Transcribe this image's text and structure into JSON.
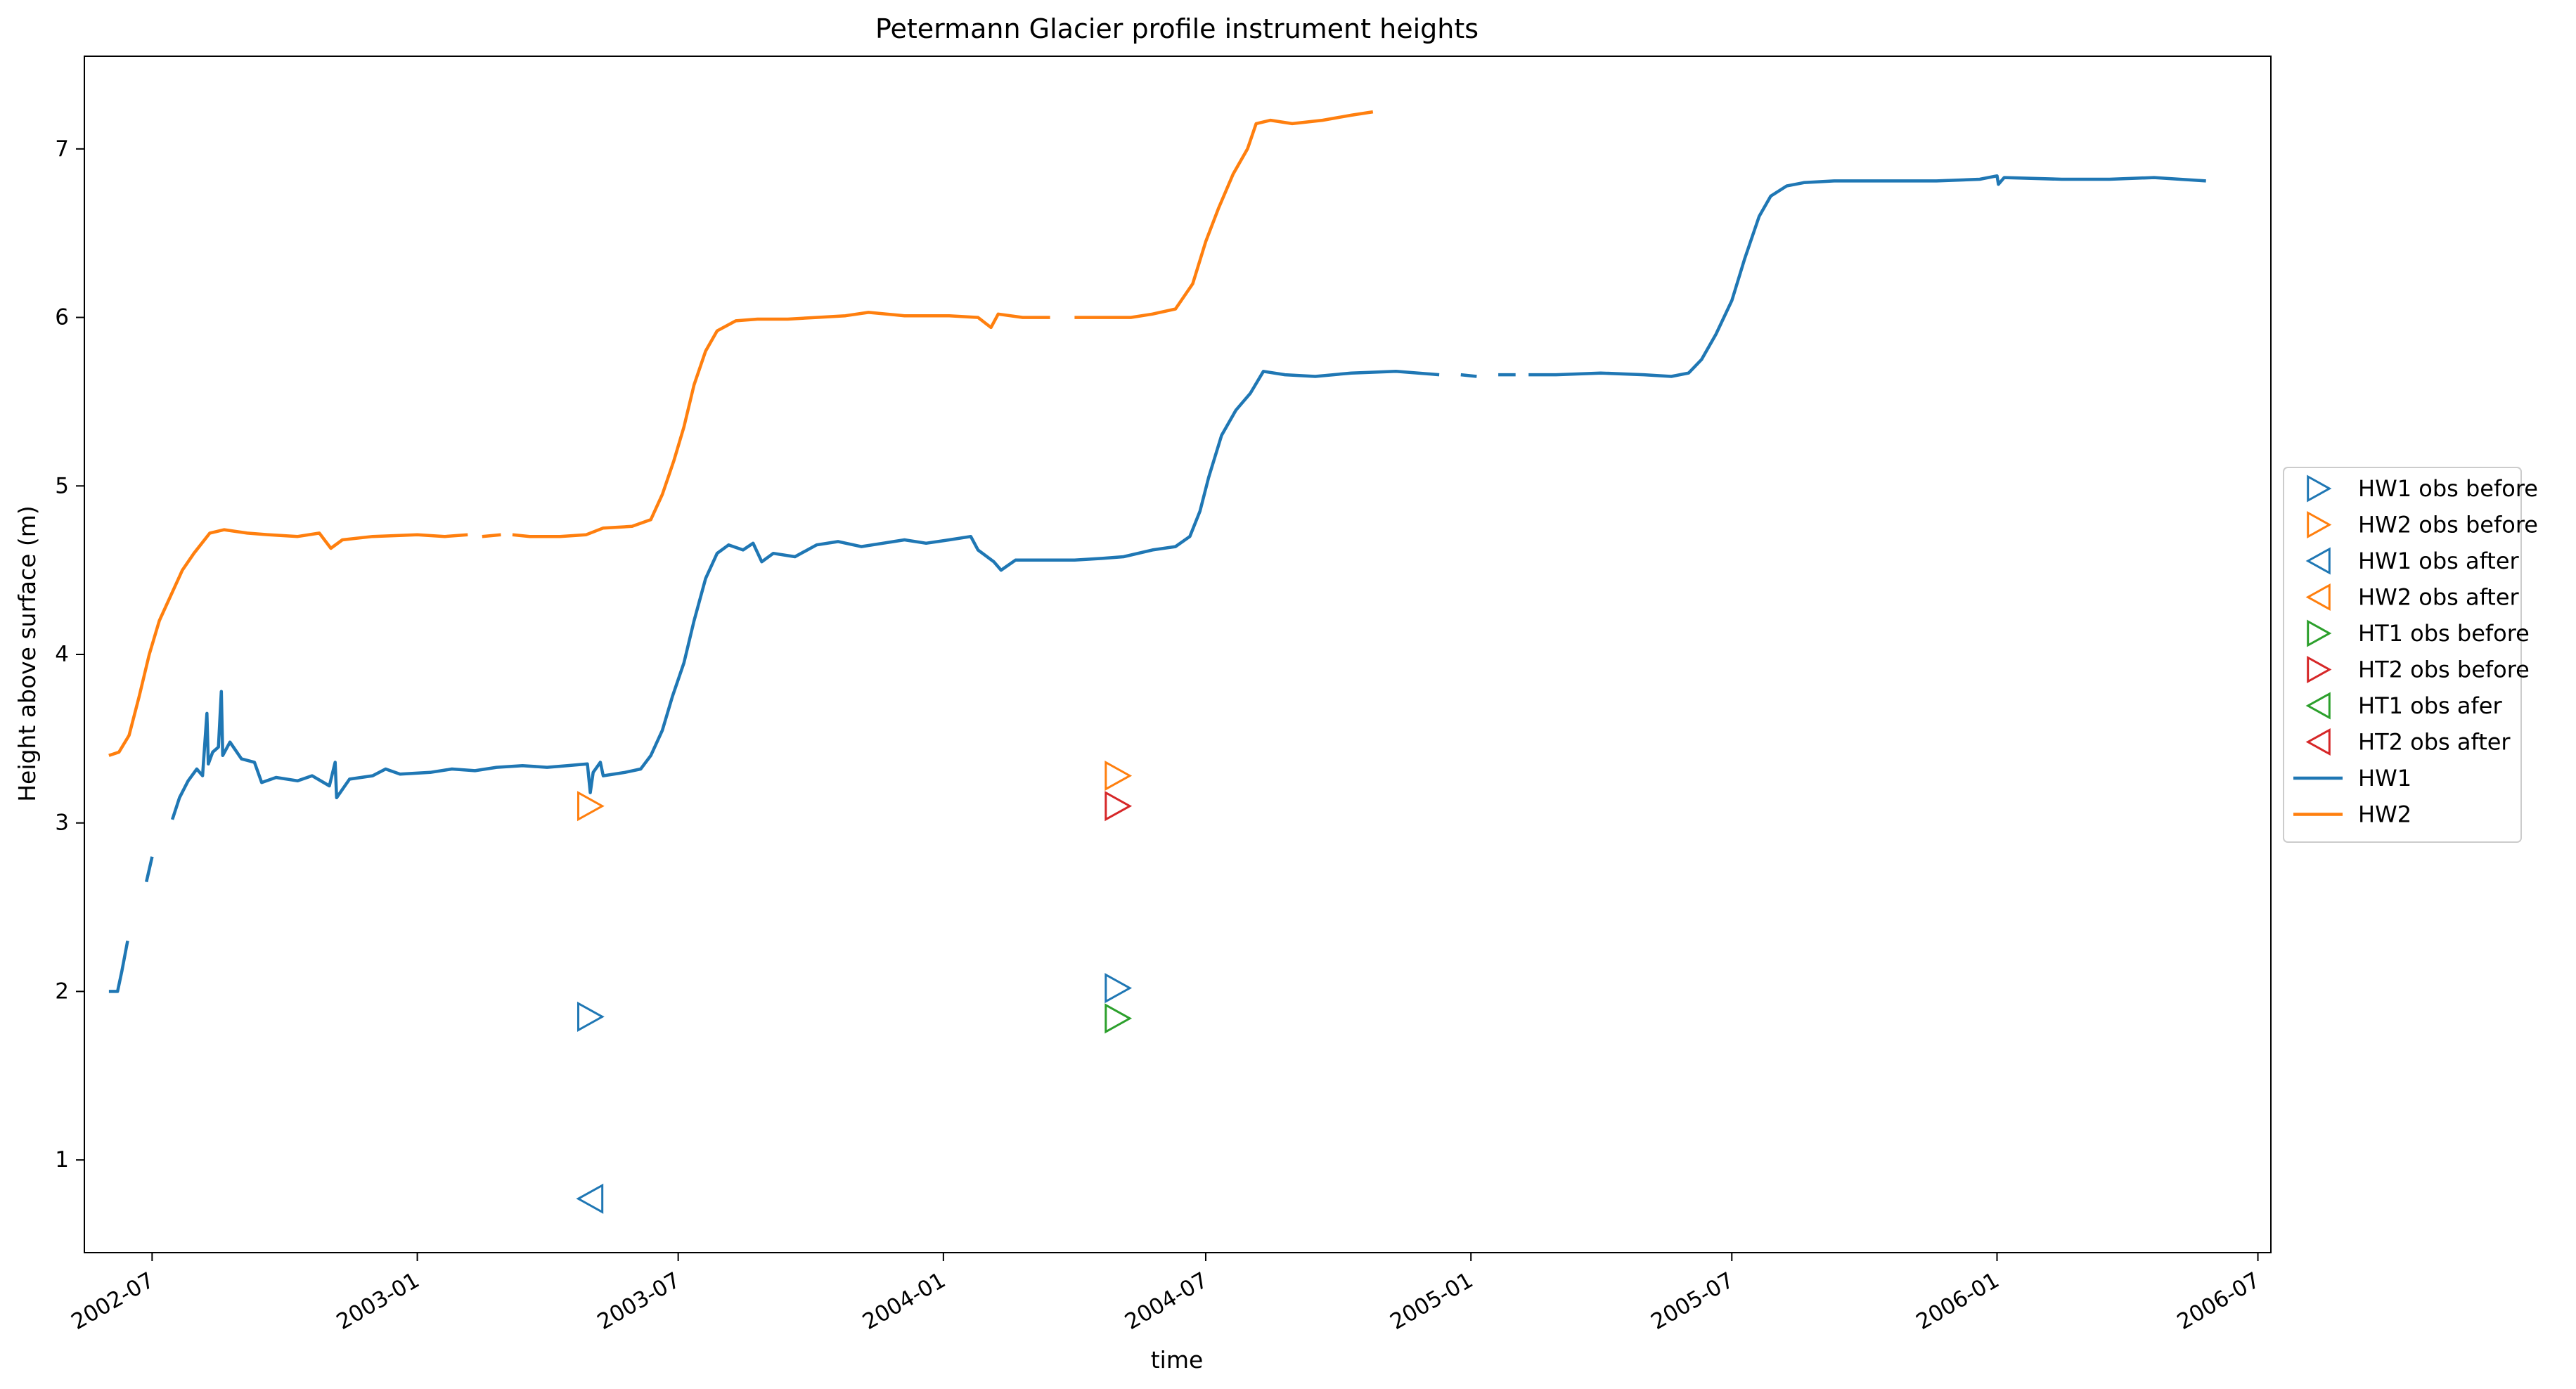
{
  "chart_data": {
    "type": "line",
    "title": "Petermann Glacier profile instrument heights",
    "xlabel": "time",
    "ylabel": "Height above surface (m)",
    "x_type": "date",
    "xlim": [
      "2002-05-15",
      "2006-07-10"
    ],
    "ylim": [
      0.45,
      7.55
    ],
    "x_ticks": [
      "2002-07",
      "2003-01",
      "2003-07",
      "2004-01",
      "2004-07",
      "2005-01",
      "2005-07",
      "2006-01",
      "2006-07"
    ],
    "y_ticks": [
      1,
      2,
      3,
      4,
      5,
      6,
      7
    ],
    "grid": false,
    "legend_position": "outside-right",
    "series": [
      {
        "name": "HW1",
        "color": "#1f77b4",
        "segments": [
          [
            [
              "2002-06-01",
              2.0
            ],
            [
              "2002-06-07",
              2.0
            ],
            [
              "2002-06-10",
              2.12
            ],
            [
              "2002-06-14",
              2.3
            ]
          ],
          [
            [
              "2002-06-27",
              2.65
            ],
            [
              "2002-07-01",
              2.8
            ]
          ],
          [
            [
              "2002-07-15",
              3.02
            ],
            [
              "2002-07-20",
              3.15
            ],
            [
              "2002-07-26",
              3.25
            ],
            [
              "2002-08-01",
              3.32
            ],
            [
              "2002-08-05",
              3.28
            ],
            [
              "2002-08-08",
              3.65
            ],
            [
              "2002-08-09",
              3.35
            ],
            [
              "2002-08-12",
              3.42
            ],
            [
              "2002-08-16",
              3.45
            ],
            [
              "2002-08-18",
              3.78
            ],
            [
              "2002-08-19",
              3.4
            ],
            [
              "2002-08-24",
              3.48
            ],
            [
              "2002-09-01",
              3.38
            ],
            [
              "2002-09-10",
              3.36
            ],
            [
              "2002-09-15",
              3.24
            ],
            [
              "2002-09-25",
              3.27
            ],
            [
              "2002-10-10",
              3.25
            ],
            [
              "2002-10-20",
              3.28
            ],
            [
              "2002-11-01",
              3.22
            ],
            [
              "2002-11-05",
              3.36
            ],
            [
              "2002-11-06",
              3.15
            ],
            [
              "2002-11-15",
              3.26
            ],
            [
              "2002-12-01",
              3.28
            ],
            [
              "2002-12-10",
              3.32
            ],
            [
              "2002-12-20",
              3.29
            ],
            [
              "2003-01-10",
              3.3
            ],
            [
              "2003-01-25",
              3.32
            ],
            [
              "2003-02-10",
              3.31
            ],
            [
              "2003-02-25",
              3.33
            ],
            [
              "2003-03-15",
              3.34
            ],
            [
              "2003-04-01",
              3.33
            ],
            [
              "2003-04-15",
              3.34
            ],
            [
              "2003-04-29",
              3.35
            ],
            [
              "2003-05-01",
              3.18
            ],
            [
              "2003-05-03",
              3.3
            ],
            [
              "2003-05-08",
              3.36
            ],
            [
              "2003-05-10",
              3.28
            ],
            [
              "2003-05-25",
              3.3
            ],
            [
              "2003-06-05",
              3.32
            ],
            [
              "2003-06-12",
              3.4
            ],
            [
              "2003-06-20",
              3.55
            ],
            [
              "2003-06-27",
              3.75
            ],
            [
              "2003-07-05",
              3.95
            ],
            [
              "2003-07-12",
              4.2
            ],
            [
              "2003-07-20",
              4.45
            ],
            [
              "2003-07-28",
              4.6
            ],
            [
              "2003-08-05",
              4.65
            ],
            [
              "2003-08-15",
              4.62
            ],
            [
              "2003-08-22",
              4.66
            ],
            [
              "2003-08-28",
              4.55
            ],
            [
              "2003-09-05",
              4.6
            ],
            [
              "2003-09-20",
              4.58
            ],
            [
              "2003-10-05",
              4.65
            ],
            [
              "2003-10-20",
              4.67
            ],
            [
              "2003-11-05",
              4.64
            ],
            [
              "2003-11-20",
              4.66
            ],
            [
              "2003-12-05",
              4.68
            ],
            [
              "2003-12-20",
              4.66
            ],
            [
              "2004-01-05",
              4.68
            ],
            [
              "2004-01-20",
              4.7
            ],
            [
              "2004-01-25",
              4.62
            ],
            [
              "2004-02-05",
              4.55
            ],
            [
              "2004-02-10",
              4.5
            ],
            [
              "2004-02-20",
              4.56
            ],
            [
              "2004-03-10",
              4.56
            ],
            [
              "2004-04-01",
              4.56
            ],
            [
              "2004-04-20",
              4.57
            ],
            [
              "2004-05-05",
              4.58
            ],
            [
              "2004-05-25",
              4.62
            ],
            [
              "2004-06-10",
              4.64
            ],
            [
              "2004-06-20",
              4.7
            ],
            [
              "2004-06-27",
              4.85
            ],
            [
              "2004-07-03",
              5.05
            ],
            [
              "2004-07-12",
              5.3
            ],
            [
              "2004-07-22",
              5.45
            ],
            [
              "2004-08-01",
              5.55
            ],
            [
              "2004-08-10",
              5.68
            ],
            [
              "2004-08-25",
              5.66
            ],
            [
              "2004-09-15",
              5.65
            ],
            [
              "2004-10-10",
              5.67
            ],
            [
              "2004-11-10",
              5.68
            ],
            [
              "2004-12-10",
              5.66
            ]
          ],
          [
            [
              "2004-12-25",
              5.66
            ],
            [
              "2005-01-05",
              5.65
            ]
          ],
          [
            [
              "2005-01-20",
              5.66
            ],
            [
              "2005-02-01",
              5.66
            ]
          ],
          [
            [
              "2005-02-10",
              5.66
            ],
            [
              "2005-03-01",
              5.66
            ],
            [
              "2005-04-01",
              5.67
            ],
            [
              "2005-05-01",
              5.66
            ],
            [
              "2005-05-20",
              5.65
            ],
            [
              "2005-06-01",
              5.67
            ],
            [
              "2005-06-10",
              5.75
            ],
            [
              "2005-06-20",
              5.9
            ],
            [
              "2005-07-01",
              6.1
            ],
            [
              "2005-07-10",
              6.35
            ],
            [
              "2005-07-20",
              6.6
            ],
            [
              "2005-07-28",
              6.72
            ],
            [
              "2005-08-08",
              6.78
            ],
            [
              "2005-08-20",
              6.8
            ],
            [
              "2005-09-10",
              6.81
            ],
            [
              "2005-10-15",
              6.81
            ],
            [
              "2005-11-20",
              6.81
            ],
            [
              "2005-12-20",
              6.82
            ],
            [
              "2006-01-01",
              6.84
            ],
            [
              "2006-01-02",
              6.79
            ],
            [
              "2006-01-06",
              6.83
            ],
            [
              "2006-02-15",
              6.82
            ],
            [
              "2006-03-20",
              6.82
            ],
            [
              "2006-04-20",
              6.83
            ],
            [
              "2006-05-26",
              6.81
            ]
          ]
        ]
      },
      {
        "name": "HW2",
        "color": "#ff7f0e",
        "segments": [
          [
            [
              "2002-06-01",
              3.4
            ],
            [
              "2002-06-08",
              3.42
            ],
            [
              "2002-06-15",
              3.52
            ],
            [
              "2002-06-22",
              3.75
            ],
            [
              "2002-06-29",
              4.0
            ],
            [
              "2002-07-06",
              4.2
            ],
            [
              "2002-07-14",
              4.35
            ],
            [
              "2002-07-22",
              4.5
            ],
            [
              "2002-07-30",
              4.6
            ],
            [
              "2002-08-10",
              4.72
            ],
            [
              "2002-08-20",
              4.74
            ],
            [
              "2002-09-05",
              4.72
            ],
            [
              "2002-09-20",
              4.71
            ],
            [
              "2002-10-10",
              4.7
            ],
            [
              "2002-10-25",
              4.72
            ],
            [
              "2002-11-02",
              4.63
            ],
            [
              "2002-11-10",
              4.68
            ],
            [
              "2002-12-01",
              4.7
            ],
            [
              "2003-01-01",
              4.71
            ],
            [
              "2003-01-20",
              4.7
            ],
            [
              "2003-02-05",
              4.71
            ]
          ],
          [
            [
              "2003-02-15",
              4.7
            ],
            [
              "2003-02-28",
              4.71
            ]
          ],
          [
            [
              "2003-03-08",
              4.71
            ],
            [
              "2003-03-20",
              4.7
            ],
            [
              "2003-04-10",
              4.7
            ],
            [
              "2003-04-28",
              4.71
            ],
            [
              "2003-05-10",
              4.75
            ],
            [
              "2003-05-30",
              4.76
            ],
            [
              "2003-06-12",
              4.8
            ],
            [
              "2003-06-20",
              4.95
            ],
            [
              "2003-06-28",
              5.15
            ],
            [
              "2003-07-05",
              5.35
            ],
            [
              "2003-07-12",
              5.6
            ],
            [
              "2003-07-20",
              5.8
            ],
            [
              "2003-07-28",
              5.92
            ],
            [
              "2003-08-10",
              5.98
            ],
            [
              "2003-08-25",
              5.99
            ],
            [
              "2003-09-15",
              5.99
            ],
            [
              "2003-10-05",
              6.0
            ],
            [
              "2003-10-25",
              6.01
            ],
            [
              "2003-11-10",
              6.03
            ],
            [
              "2003-12-05",
              6.01
            ],
            [
              "2004-01-05",
              6.01
            ],
            [
              "2004-01-25",
              6.0
            ],
            [
              "2004-02-03",
              5.94
            ],
            [
              "2004-02-08",
              6.02
            ],
            [
              "2004-02-25",
              6.0
            ],
            [
              "2004-03-15",
              6.0
            ]
          ],
          [
            [
              "2004-04-01",
              6.0
            ],
            [
              "2004-04-20",
              6.0
            ],
            [
              "2004-05-10",
              6.0
            ],
            [
              "2004-05-25",
              6.02
            ],
            [
              "2004-06-10",
              6.05
            ],
            [
              "2004-06-22",
              6.2
            ],
            [
              "2004-07-01",
              6.45
            ],
            [
              "2004-07-10",
              6.65
            ],
            [
              "2004-07-20",
              6.85
            ],
            [
              "2004-07-30",
              7.0
            ],
            [
              "2004-08-05",
              7.15
            ],
            [
              "2004-08-15",
              7.17
            ],
            [
              "2004-08-30",
              7.15
            ],
            [
              "2004-09-20",
              7.17
            ],
            [
              "2004-10-10",
              7.2
            ],
            [
              "2004-10-25",
              7.22
            ]
          ]
        ]
      }
    ],
    "markers": [
      {
        "name": "HW1 obs before",
        "color": "#1f77b4",
        "shape": "triangle-right",
        "points": [
          [
            "2003-05-01",
            1.85
          ],
          [
            "2004-05-01",
            2.02
          ]
        ]
      },
      {
        "name": "HW2 obs before",
        "color": "#ff7f0e",
        "shape": "triangle-right",
        "points": [
          [
            "2003-05-01",
            3.1
          ],
          [
            "2004-05-01",
            3.28
          ]
        ]
      },
      {
        "name": "HW1 obs after",
        "color": "#1f77b4",
        "shape": "triangle-left",
        "points": [
          [
            "2003-05-01",
            0.77
          ]
        ]
      },
      {
        "name": "HW2 obs after",
        "color": "#ff7f0e",
        "shape": "triangle-left",
        "points": []
      },
      {
        "name": "HT1 obs before",
        "color": "#2ca02c",
        "shape": "triangle-right",
        "points": [
          [
            "2004-05-01",
            1.84
          ]
        ]
      },
      {
        "name": "HT2 obs before",
        "color": "#d62728",
        "shape": "triangle-right",
        "points": [
          [
            "2004-05-01",
            3.1
          ]
        ]
      },
      {
        "name": "HT1 obs afer",
        "color": "#2ca02c",
        "shape": "triangle-left",
        "points": []
      },
      {
        "name": "HT2 obs after",
        "color": "#d62728",
        "shape": "triangle-left",
        "points": []
      }
    ],
    "legend": [
      {
        "label": "HW1 obs before",
        "color": "#1f77b4",
        "kind": "triangle-right"
      },
      {
        "label": "HW2 obs before",
        "color": "#ff7f0e",
        "kind": "triangle-right"
      },
      {
        "label": "HW1 obs after",
        "color": "#1f77b4",
        "kind": "triangle-left"
      },
      {
        "label": "HW2 obs after",
        "color": "#ff7f0e",
        "kind": "triangle-left"
      },
      {
        "label": "HT1 obs before",
        "color": "#2ca02c",
        "kind": "triangle-right"
      },
      {
        "label": "HT2 obs before",
        "color": "#d62728",
        "kind": "triangle-right"
      },
      {
        "label": "HT1 obs afer",
        "color": "#2ca02c",
        "kind": "triangle-left"
      },
      {
        "label": "HT2 obs after",
        "color": "#d62728",
        "kind": "triangle-left"
      },
      {
        "label": "HW1",
        "color": "#1f77b4",
        "kind": "line"
      },
      {
        "label": "HW2",
        "color": "#ff7f0e",
        "kind": "line"
      }
    ]
  }
}
